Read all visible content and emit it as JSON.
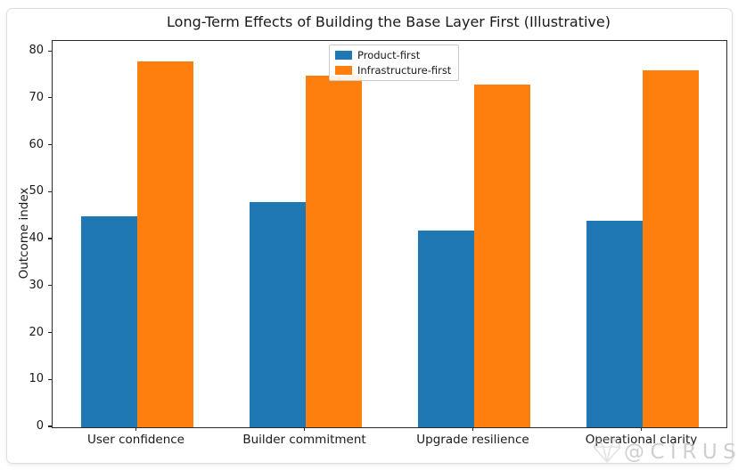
{
  "chart_data": {
    "type": "bar",
    "title": "Long-Term Effects of Building the Base Layer First (Illustrative)",
    "xlabel": "",
    "ylabel": "Outcome index",
    "categories": [
      "User confidence",
      "Builder commitment",
      "Upgrade resilience",
      "Operational clarity"
    ],
    "series": [
      {
        "name": "Product-first",
        "color": "#1f77b4",
        "values": [
          45,
          48,
          42,
          44
        ]
      },
      {
        "name": "Infrastructure-first",
        "color": "#ff7f0e",
        "values": [
          78,
          75,
          73,
          76
        ]
      }
    ],
    "ylim": [
      0,
      82.3
    ],
    "yticks": [
      0,
      10,
      20,
      30,
      40,
      50,
      60,
      70,
      80
    ],
    "grid": false,
    "legend_position": "upper center",
    "background": "#ffffff",
    "spine_color": "#2a2a2a"
  },
  "watermark": {
    "text": "@CIRUS",
    "icon": "gem-icon",
    "color": "#c7c7c7"
  }
}
